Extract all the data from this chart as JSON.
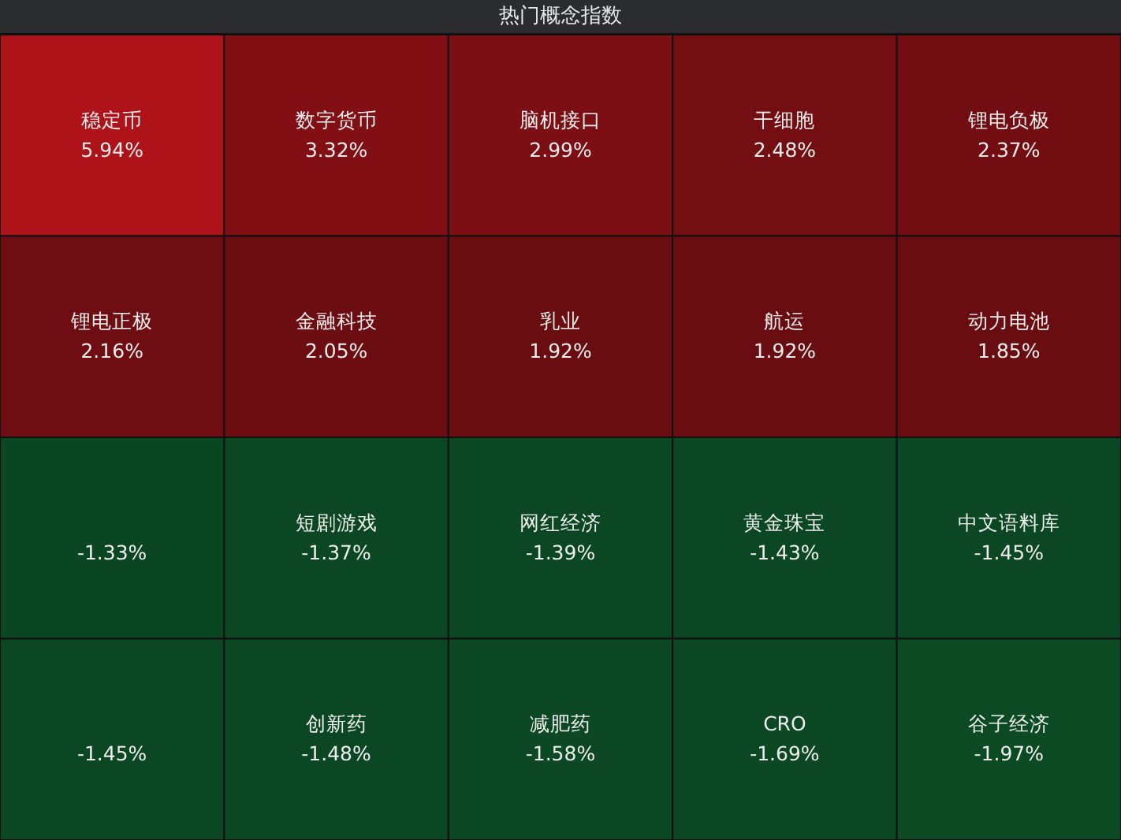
{
  "chart_data": {
    "type": "other",
    "title": "热门概念指数",
    "categories": [
      "稳定币",
      "数字货币",
      "脑机接口",
      "干细胞",
      "锂电负极",
      "锂电正极",
      "金融科技",
      "乳业",
      "航运",
      "动力电池",
      null,
      "短剧游戏",
      "网红经济",
      "黄金珠宝",
      "中文语料库",
      null,
      "创新药",
      "减肥药",
      "CRO",
      "谷子经济"
    ],
    "values": [
      5.94,
      3.32,
      2.99,
      2.48,
      2.37,
      2.16,
      2.05,
      1.92,
      1.92,
      1.85,
      -1.33,
      -1.37,
      -1.39,
      -1.43,
      -1.45,
      -1.45,
      -1.48,
      -1.58,
      -1.69,
      -1.97
    ],
    "value_labels": [
      "5.94%",
      "3.32%",
      "2.99%",
      "2.48%",
      "2.37%",
      "2.16%",
      "2.05%",
      "1.92%",
      "1.92%",
      "1.85%",
      "-1.33%",
      "-1.37%",
      "-1.39%",
      "-1.43%",
      "-1.45%",
      "-1.45%",
      "-1.48%",
      "-1.58%",
      "-1.69%",
      "-1.97%"
    ]
  }
}
